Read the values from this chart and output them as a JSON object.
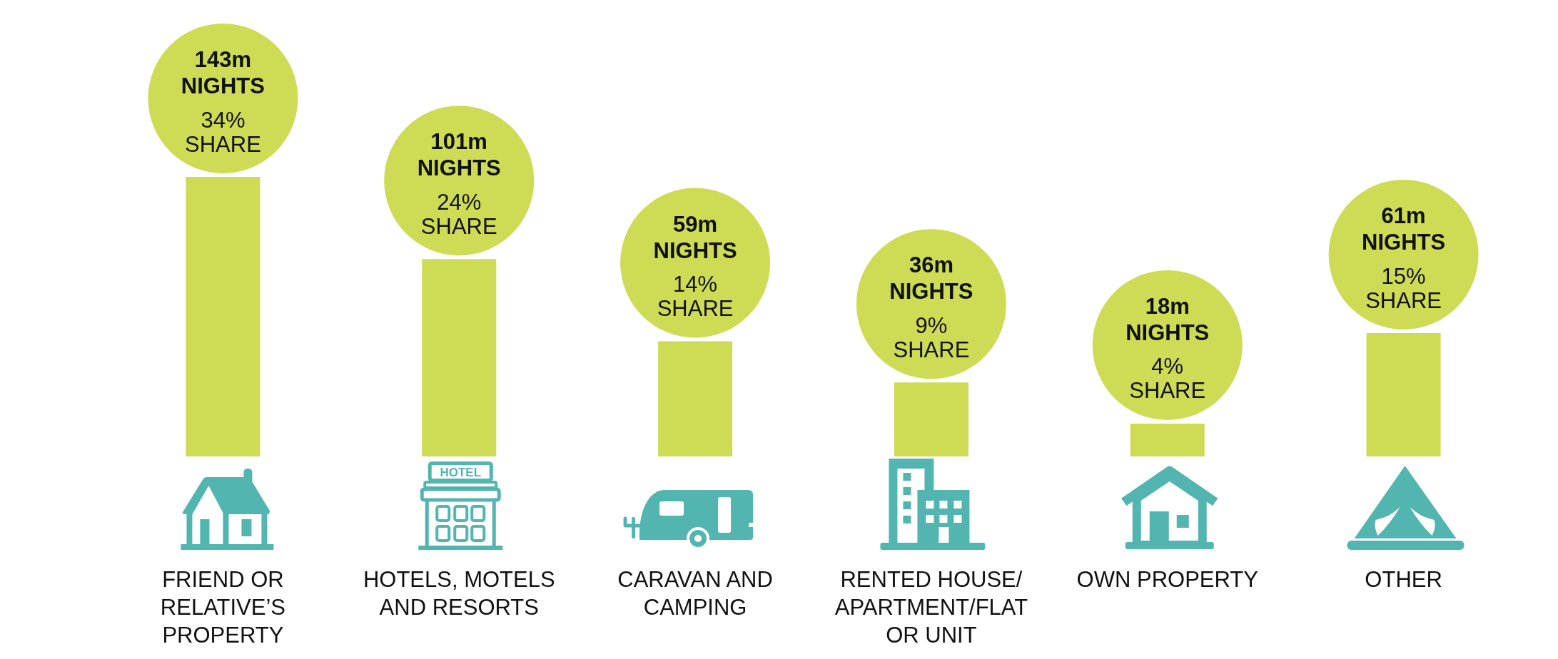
{
  "chart_data": {
    "type": "bar",
    "categories": [
      "FRIEND OR RELATIVE’S PROPERTY",
      "HOTELS, MOTELS AND RESORTS",
      "CARAVAN AND CAMPING",
      "RENTED HOUSE/APARTMENT/FLAT OR UNIT",
      "OWN PROPERTY",
      "OTHER"
    ],
    "values": [
      34,
      24,
      14,
      9,
      4,
      15
    ],
    "color": "#cddb55",
    "value_labels": [
      "34% SHARE",
      "24% SHARE",
      "14% SHARE",
      "9% SHARE",
      "4% SHARE",
      "15% SHARE"
    ],
    "annotations": [
      "143m NIGHTS",
      "101m NIGHTS",
      "59m NIGHTS",
      "36m NIGHTS",
      "18m NIGHTS",
      "61m NIGHTS",
      "HOTEL"
    ]
  }
}
